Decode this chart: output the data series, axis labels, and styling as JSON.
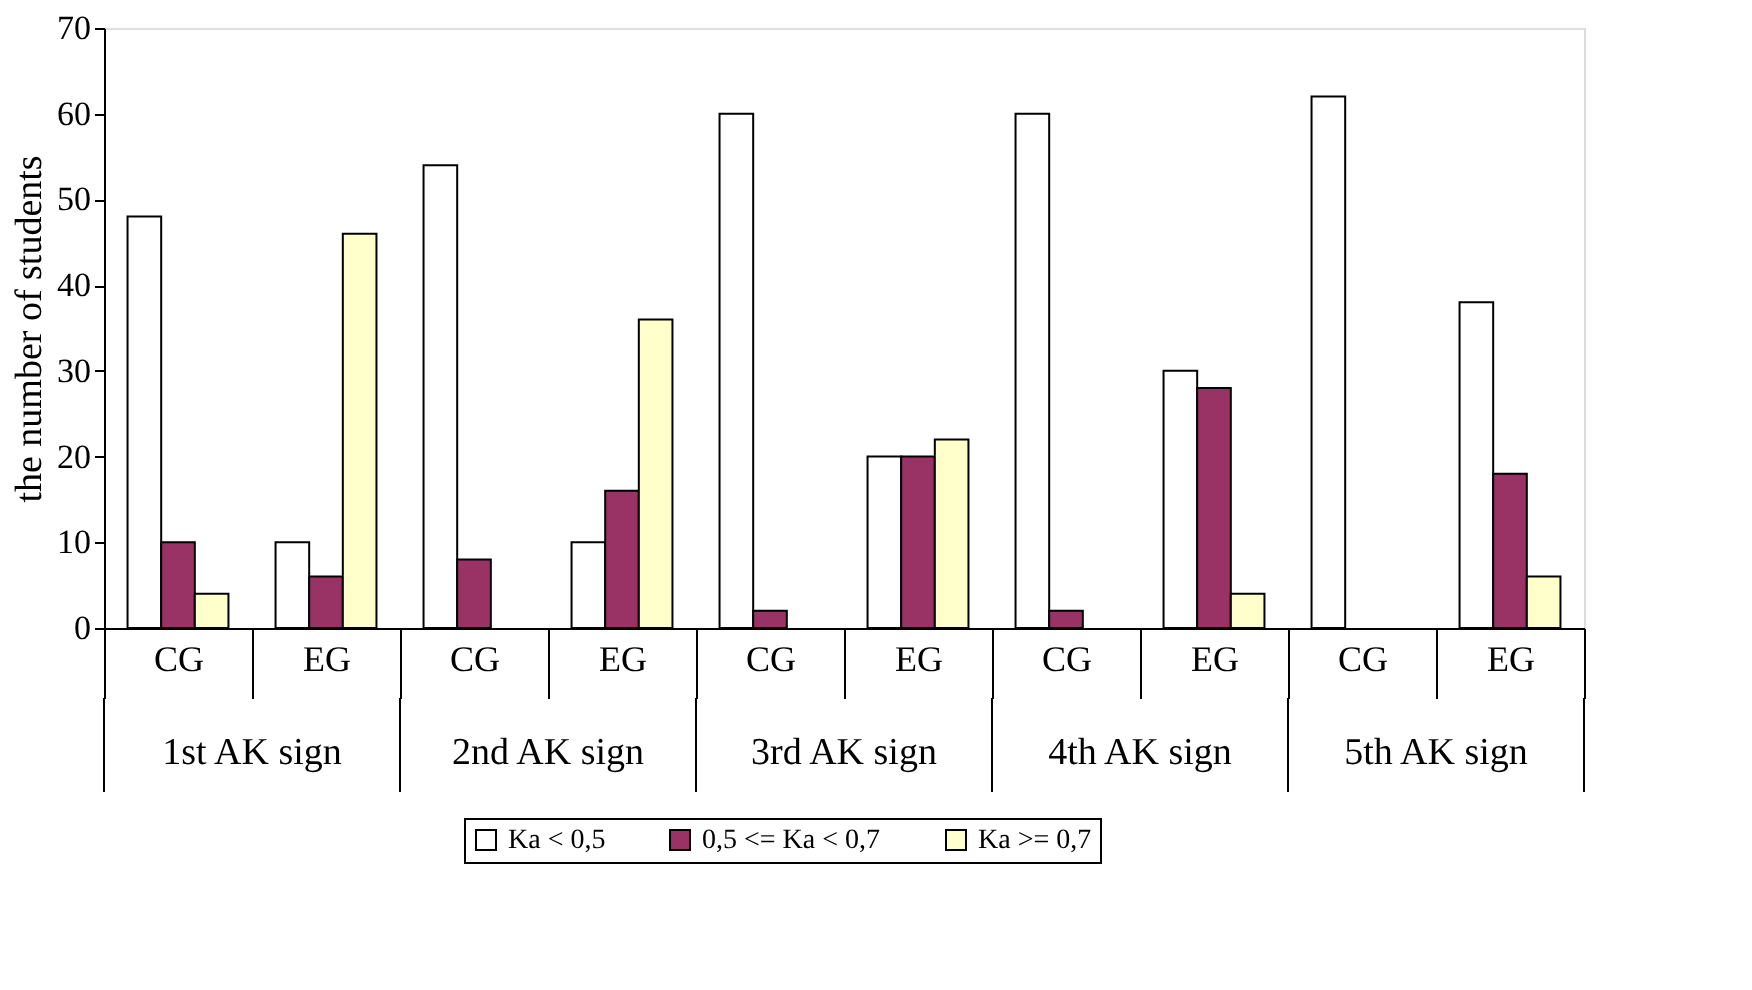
{
  "chart_data": {
    "type": "bar",
    "ylabel": "the number of students",
    "categories": [
      "CG",
      "EG",
      "CG",
      "EG",
      "CG",
      "EG",
      "CG",
      "EG",
      "CG",
      "EG"
    ],
    "series": [
      {
        "name": "Ka < 0,5",
        "color": "#ffffff",
        "values": [
          48,
          10,
          54,
          10,
          60,
          20,
          60,
          30,
          62,
          38
        ]
      },
      {
        "name": "0,5 <= Ka < 0,7",
        "color": "#993366",
        "values": [
          10,
          6,
          8,
          16,
          2,
          20,
          2,
          28,
          0,
          18
        ]
      },
      {
        "name": "Ka >= 0,7",
        "color": "#ffffcc",
        "values": [
          4,
          46,
          0,
          36,
          0,
          22,
          0,
          4,
          0,
          6
        ]
      }
    ],
    "annotations": [
      "1st AK sign",
      "2nd AK sign",
      "3rd AK sign",
      "4th AK sign",
      "5th AK sign"
    ],
    "ylim": [
      0,
      70
    ],
    "yticks": [
      0,
      10,
      20,
      30,
      40,
      50,
      60,
      70
    ],
    "grid": false,
    "legend": "bottom"
  }
}
